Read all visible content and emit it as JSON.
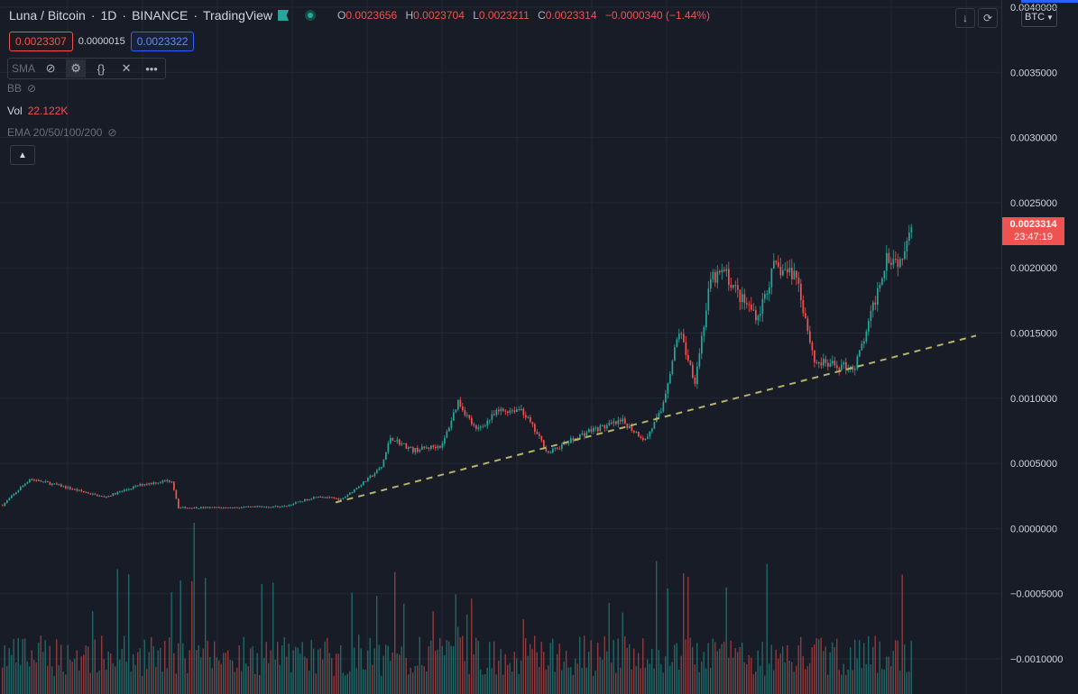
{
  "header": {
    "symbol": "Luna / Bitcoin",
    "interval": "1D",
    "exchange": "BINANCE",
    "brand": "TradingView",
    "ohlc": [
      {
        "label": "O",
        "value": "0.0023656"
      },
      {
        "label": "H",
        "value": "0.0023704"
      },
      {
        "label": "L",
        "value": "0.0023211"
      },
      {
        "label": "C",
        "value": "0.0023314"
      }
    ],
    "change": "−0.0000340 (−1.44%)"
  },
  "quote": {
    "bid": "0.0023307",
    "spread": "0.0000015",
    "ask": "0.0023322"
  },
  "indicators": {
    "sma": "SMA",
    "bb": "BB",
    "vol_label": "Vol",
    "vol_value": "22.122K",
    "ema": "EMA 20/50/100/200"
  },
  "currency": "BTC",
  "last_price": {
    "price": "0.0023314",
    "countdown": "23:47:19"
  },
  "colors": {
    "up": "#26a69a",
    "down": "#ef5350",
    "trend": "#b5b46a",
    "bg": "#181c27",
    "grid": "#232734",
    "axis_text": "#d1d4dc"
  },
  "chart_data": {
    "type": "candlestick",
    "y_ticks": [
      "0.0040000",
      "0.0035000",
      "0.0030000",
      "0.0025000",
      "0.0020000",
      "0.0015000",
      "0.0010000",
      "0.0005000",
      "0.0000000",
      "−0.0005000",
      "−0.0010000"
    ],
    "ylim": [
      -0.00115,
      0.004
    ],
    "price_path": [
      [
        0,
        0.00018
      ],
      [
        12,
        0.00038
      ],
      [
        25,
        0.00033
      ],
      [
        45,
        0.00024
      ],
      [
        62,
        0.00034
      ],
      [
        75,
        0.00037
      ],
      [
        78,
        0.00016
      ],
      [
        100,
        0.00016
      ],
      [
        125,
        0.00017
      ],
      [
        140,
        0.00025
      ],
      [
        150,
        0.00022
      ],
      [
        162,
        0.00038
      ],
      [
        168,
        0.00047
      ],
      [
        172,
        0.0007
      ],
      [
        182,
        0.0006
      ],
      [
        195,
        0.00064
      ],
      [
        202,
        0.00098
      ],
      [
        210,
        0.00075
      ],
      [
        220,
        0.0009
      ],
      [
        230,
        0.00092
      ],
      [
        242,
        0.00058
      ],
      [
        260,
        0.00075
      ],
      [
        275,
        0.00082
      ],
      [
        285,
        0.00068
      ],
      [
        292,
        0.0009
      ],
      [
        300,
        0.00152
      ],
      [
        307,
        0.00114
      ],
      [
        314,
        0.0019
      ],
      [
        320,
        0.00197
      ],
      [
        328,
        0.00175
      ],
      [
        335,
        0.00163
      ],
      [
        342,
        0.002
      ],
      [
        352,
        0.00195
      ],
      [
        360,
        0.00128
      ],
      [
        368,
        0.00125
      ],
      [
        378,
        0.00124
      ],
      [
        384,
        0.00156
      ],
      [
        392,
        0.0021
      ],
      [
        398,
        0.00205
      ],
      [
        402,
        0.00233
      ]
    ],
    "trendline": [
      [
        148,
        0.0002
      ],
      [
        432,
        0.00148
      ]
    ],
    "n_bars": 404
  }
}
